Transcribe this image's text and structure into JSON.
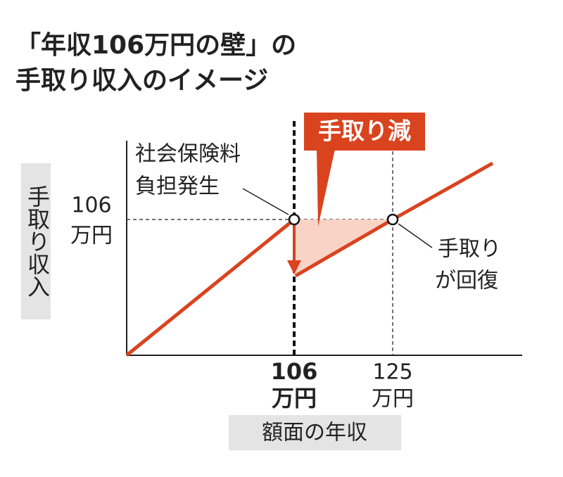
{
  "header": {
    "title_lines": [
      "「年収106万円の壁」の",
      "手取り収入のイメージ"
    ]
  },
  "axes": {
    "y_label": "手取り収入",
    "x_label": "額面の年収",
    "y_tick": {
      "number": "106",
      "unit": "万円"
    },
    "x_ticks": [
      {
        "number": "106",
        "unit": "万円"
      },
      {
        "number": "125",
        "unit": "万円"
      }
    ]
  },
  "annotations": {
    "callout": "手取り減",
    "burden_lines": [
      "社会保険料",
      "負担発生"
    ],
    "recovery_lines": [
      "手取り",
      "が回復"
    ]
  }
}
